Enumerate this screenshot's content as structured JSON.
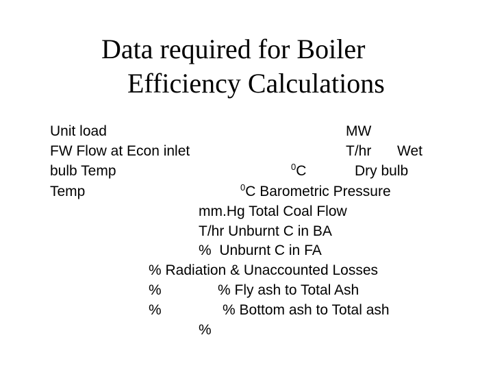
{
  "title": {
    "lines": [
      "Data required for Boiler",
      "Efficiency Calculations"
    ]
  },
  "body": {
    "fragments": [
      {
        "text": "Unit load"
      },
      {
        "text": "MW"
      },
      {
        "text": "FW Flow at Econ inlet"
      },
      {
        "text": "T/hr"
      },
      {
        "text": "Wet"
      },
      {
        "text": "bulb Temp"
      },
      {
        "sup": "0",
        "text": "C"
      },
      {
        "text": "Dry bulb"
      },
      {
        "text": "Temp"
      },
      {
        "sup": "0",
        "text": "C Barometric Pressure"
      },
      {
        "text": "mm.Hg Total Coal Flow"
      },
      {
        "text": "T/hr Unburnt C in BA"
      },
      {
        "text": "%  Unburnt C in FA"
      },
      {
        "text": "% Radiation & Unaccounted Losses"
      },
      {
        "text": "%"
      },
      {
        "text": "% Fly ash to Total Ash"
      },
      {
        "text": "%"
      },
      {
        "text": "% Bottom ash to Total ash"
      },
      {
        "text": "%"
      }
    ]
  }
}
